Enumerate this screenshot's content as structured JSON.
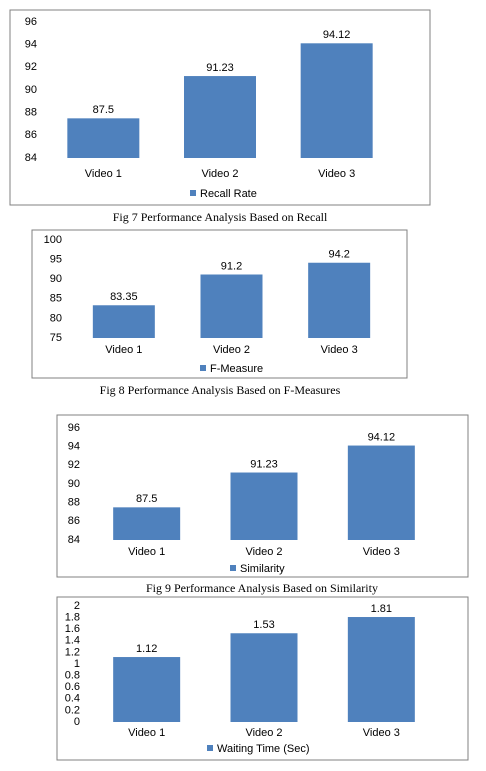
{
  "chart_data": [
    {
      "type": "bar",
      "categories": [
        "Video 1",
        "Video 2",
        "Video 3"
      ],
      "series": [
        {
          "name": "Recall Rate",
          "color": "#4f81bd",
          "values": [
            87.5,
            91.23,
            94.12
          ]
        }
      ],
      "ylim": [
        84,
        96
      ],
      "yticks": [
        84,
        86,
        88,
        90,
        92,
        94,
        96
      ],
      "caption": "Fig 7 Performance Analysis Based on Recall"
    },
    {
      "type": "bar",
      "categories": [
        "Video 1",
        "Video 2",
        "Video 3"
      ],
      "series": [
        {
          "name": "F-Measure",
          "color": "#4f81bd",
          "values": [
            83.35,
            91.2,
            94.2
          ]
        }
      ],
      "ylim": [
        75,
        100
      ],
      "yticks": [
        75,
        80,
        85,
        90,
        95,
        100
      ],
      "caption": "Fig 8 Performance Analysis Based on F-Measures"
    },
    {
      "type": "bar",
      "categories": [
        "Video 1",
        "Video 2",
        "Video 3"
      ],
      "series": [
        {
          "name": "Similarity",
          "color": "#4f81bd",
          "values": [
            87.5,
            91.23,
            94.12
          ]
        }
      ],
      "ylim": [
        84,
        96
      ],
      "yticks": [
        84,
        86,
        88,
        90,
        92,
        94,
        96
      ],
      "caption": "Fig 9 Performance Analysis Based on Similarity"
    },
    {
      "type": "bar",
      "categories": [
        "Video 1",
        "Video 2",
        "Video 3"
      ],
      "series": [
        {
          "name": "Waiting Time (Sec)",
          "color": "#4f81bd",
          "values": [
            1.12,
            1.53,
            1.81
          ]
        }
      ],
      "ylim": [
        0,
        2
      ],
      "yticks": [
        0,
        0.2,
        0.4,
        0.6,
        0.8,
        1,
        1.2,
        1.4,
        1.6,
        1.8,
        2
      ]
    }
  ]
}
